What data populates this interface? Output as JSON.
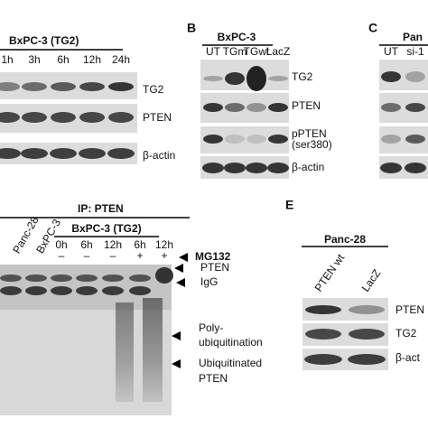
{
  "panel_a": {
    "header": "BxPC-3 (TG2)",
    "lanes": [
      "1h",
      "3h",
      "6h",
      "12h",
      "24h"
    ],
    "rows": [
      "TG2",
      "PTEN",
      "β-actin"
    ]
  },
  "panel_b": {
    "letter": "B",
    "header": "BxPC-3",
    "lanes": [
      "UT",
      "TGm",
      "TGwt",
      "LacZ"
    ],
    "rows": [
      "TG2",
      "PTEN",
      "pPTEN",
      "(ser380)",
      "β-actin"
    ]
  },
  "panel_c": {
    "letter": "C",
    "header": "Pan",
    "lanes": [
      "UT",
      "si-1"
    ]
  },
  "panel_d": {
    "header": "IP: PTEN",
    "cell_lines": [
      "Panc-28",
      "BxPC-3"
    ],
    "group": "BxPC-3 (TG2)",
    "lanes": [
      "0h",
      "6h",
      "12h",
      "6h",
      "12h"
    ],
    "treatment": [
      "–",
      "–",
      "–",
      "+",
      "+"
    ],
    "treatment_label": "MG132",
    "bands": [
      "PTEN",
      "IgG",
      "Poly-",
      "ubiquitination",
      "Ubiquitinated",
      "PTEN"
    ]
  },
  "panel_e": {
    "letter": "E",
    "header": "Panc-28",
    "lanes": [
      "PTEN wt",
      "LacZ"
    ],
    "rows": [
      "PTEN",
      "TG2",
      "β-act"
    ]
  }
}
